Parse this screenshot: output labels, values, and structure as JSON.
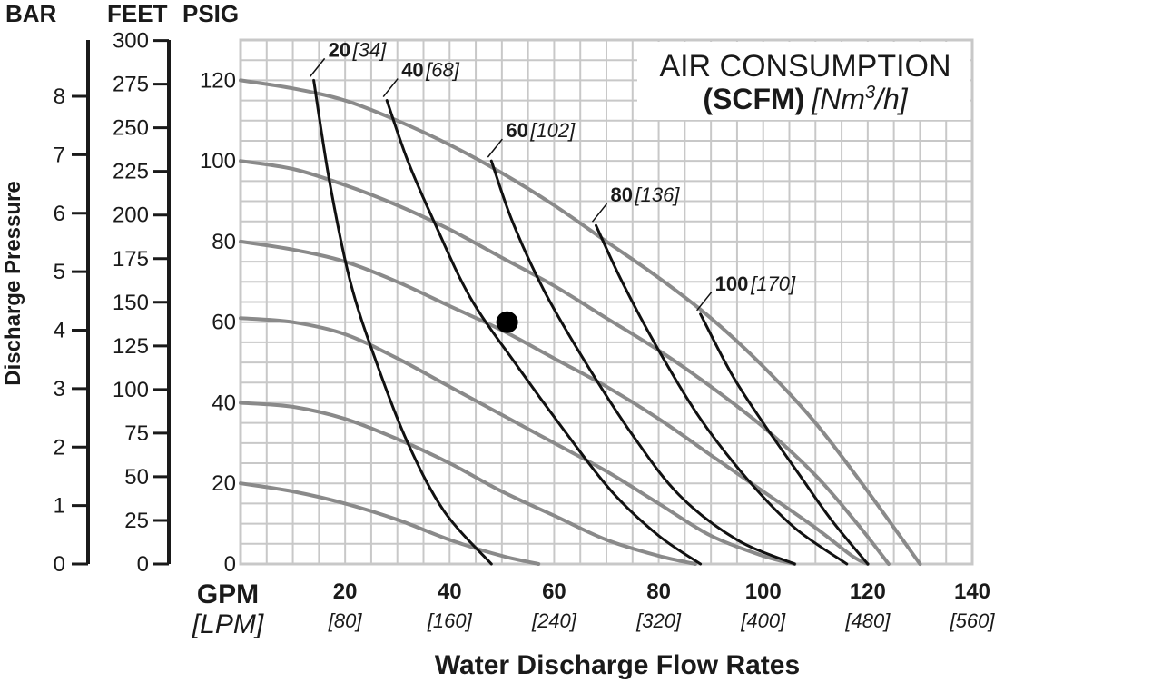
{
  "chart_data": {
    "type": "line",
    "title": "AIR CONSUMPTION",
    "title_units_bold": "(SCFM)",
    "title_units_italic_prefix": "[Nm",
    "title_units_italic_sup": "3",
    "title_units_italic_suffix": "/h]",
    "xlabel": "Water Discharge Flow Rates",
    "xunit_primary": "GPM",
    "xunit_secondary": "[LPM]",
    "ylabel": "Discharge Pressure",
    "yunit_headers": [
      "BAR",
      "FEET",
      "PSIG"
    ],
    "xlim": [
      0,
      140
    ],
    "ylim_psig": [
      0,
      130
    ],
    "x_ticks": [
      {
        "value": 20,
        "label": "20",
        "sub": "[80]"
      },
      {
        "value": 40,
        "label": "40",
        "sub": "[160]"
      },
      {
        "value": 60,
        "label": "60",
        "sub": "[240]"
      },
      {
        "value": 80,
        "label": "80",
        "sub": "[320]"
      },
      {
        "value": 100,
        "label": "100",
        "sub": "[400]"
      },
      {
        "value": 120,
        "label": "120",
        "sub": "[480]"
      },
      {
        "value": 140,
        "label": "140",
        "sub": "[560]"
      }
    ],
    "psig_ticks": [
      {
        "value": 0,
        "label": "0"
      },
      {
        "value": 20,
        "label": "20"
      },
      {
        "value": 40,
        "label": "40"
      },
      {
        "value": 60,
        "label": "60"
      },
      {
        "value": 80,
        "label": "80"
      },
      {
        "value": 100,
        "label": "100"
      },
      {
        "value": 120,
        "label": "120"
      }
    ],
    "feet_ticks": [
      {
        "value": 0,
        "label": "0"
      },
      {
        "value": 25,
        "label": "25"
      },
      {
        "value": 50,
        "label": "50"
      },
      {
        "value": 75,
        "label": "75"
      },
      {
        "value": 100,
        "label": "100"
      },
      {
        "value": 125,
        "label": "125"
      },
      {
        "value": 150,
        "label": "150"
      },
      {
        "value": 175,
        "label": "175"
      },
      {
        "value": 200,
        "label": "200"
      },
      {
        "value": 225,
        "label": "225"
      },
      {
        "value": 250,
        "label": "250"
      },
      {
        "value": 275,
        "label": "275"
      },
      {
        "value": 300,
        "label": "300"
      }
    ],
    "bar_ticks": [
      {
        "value": 0,
        "label": "0"
      },
      {
        "value": 1,
        "label": "1"
      },
      {
        "value": 2,
        "label": "2"
      },
      {
        "value": 3,
        "label": "3"
      },
      {
        "value": 4,
        "label": "4"
      },
      {
        "value": 5,
        "label": "5"
      },
      {
        "value": 6,
        "label": "6"
      },
      {
        "value": 7,
        "label": "7"
      },
      {
        "value": 8,
        "label": "8"
      }
    ],
    "air_pressure_curves": [
      {
        "inlet_psig": 20,
        "points": [
          [
            0,
            20
          ],
          [
            10,
            18
          ],
          [
            20,
            15
          ],
          [
            30,
            11
          ],
          [
            40,
            6
          ],
          [
            50,
            2
          ],
          [
            57,
            0
          ]
        ]
      },
      {
        "inlet_psig": 40,
        "points": [
          [
            0,
            40
          ],
          [
            10,
            39
          ],
          [
            20,
            36
          ],
          [
            30,
            31
          ],
          [
            40,
            25
          ],
          [
            50,
            18
          ],
          [
            60,
            12
          ],
          [
            70,
            6
          ],
          [
            80,
            2
          ],
          [
            87,
            0
          ]
        ]
      },
      {
        "inlet_psig": 60,
        "points": [
          [
            0,
            61
          ],
          [
            10,
            60
          ],
          [
            20,
            57
          ],
          [
            30,
            51
          ],
          [
            40,
            44
          ],
          [
            50,
            37
          ],
          [
            60,
            30
          ],
          [
            70,
            23
          ],
          [
            80,
            15
          ],
          [
            90,
            7
          ],
          [
            100,
            2
          ],
          [
            106,
            0
          ]
        ]
      },
      {
        "inlet_psig": 80,
        "points": [
          [
            0,
            80
          ],
          [
            10,
            78
          ],
          [
            20,
            75
          ],
          [
            30,
            70
          ],
          [
            40,
            64
          ],
          [
            50,
            58
          ],
          [
            60,
            51
          ],
          [
            70,
            44
          ],
          [
            80,
            36
          ],
          [
            90,
            27
          ],
          [
            100,
            18
          ],
          [
            110,
            9
          ],
          [
            117,
            2
          ],
          [
            120,
            0
          ]
        ]
      },
      {
        "inlet_psig": 100,
        "points": [
          [
            0,
            100
          ],
          [
            10,
            98
          ],
          [
            20,
            94
          ],
          [
            30,
            89
          ],
          [
            40,
            83
          ],
          [
            50,
            76
          ],
          [
            60,
            69
          ],
          [
            70,
            61
          ],
          [
            80,
            53
          ],
          [
            90,
            44
          ],
          [
            100,
            34
          ],
          [
            110,
            22
          ],
          [
            118,
            10
          ],
          [
            124,
            0
          ]
        ]
      },
      {
        "inlet_psig": 120,
        "points": [
          [
            0,
            120
          ],
          [
            10,
            118
          ],
          [
            20,
            115
          ],
          [
            30,
            110
          ],
          [
            40,
            104
          ],
          [
            50,
            97
          ],
          [
            60,
            89
          ],
          [
            70,
            80
          ],
          [
            80,
            71
          ],
          [
            90,
            61
          ],
          [
            100,
            49
          ],
          [
            110,
            35
          ],
          [
            120,
            18
          ],
          [
            130,
            0
          ]
        ]
      }
    ],
    "air_consumption_curves": [
      {
        "label_bold": "20",
        "label_italic": "[34]",
        "points": [
          [
            14,
            120
          ],
          [
            17,
            95
          ],
          [
            21,
            70
          ],
          [
            26,
            50
          ],
          [
            32,
            30
          ],
          [
            39,
            13
          ],
          [
            48,
            0
          ]
        ]
      },
      {
        "label_bold": "40",
        "label_italic": "[68]",
        "points": [
          [
            28,
            115
          ],
          [
            32,
            100
          ],
          [
            37,
            85
          ],
          [
            44,
            66
          ],
          [
            53,
            49
          ],
          [
            62,
            33
          ],
          [
            71,
            18
          ],
          [
            80,
            7
          ],
          [
            88,
            0
          ]
        ]
      },
      {
        "label_bold": "60",
        "label_italic": "[102]",
        "points": [
          [
            48,
            100
          ],
          [
            52,
            85
          ],
          [
            58,
            68
          ],
          [
            66,
            50
          ],
          [
            75,
            32
          ],
          [
            84,
            17
          ],
          [
            95,
            6
          ],
          [
            106,
            0
          ]
        ]
      },
      {
        "label_bold": "80",
        "label_italic": "[136]",
        "points": [
          [
            68,
            84
          ],
          [
            73,
            70
          ],
          [
            80,
            53
          ],
          [
            88,
            36
          ],
          [
            97,
            21
          ],
          [
            106,
            9
          ],
          [
            116,
            0
          ]
        ]
      },
      {
        "label_bold": "100",
        "label_italic": "[170]",
        "points": [
          [
            88,
            62
          ],
          [
            94,
            47
          ],
          [
            100,
            35
          ],
          [
            107,
            22
          ],
          [
            113,
            11
          ],
          [
            120,
            0
          ]
        ]
      }
    ],
    "marker": {
      "x": 51,
      "y": 60
    },
    "grid": true
  }
}
